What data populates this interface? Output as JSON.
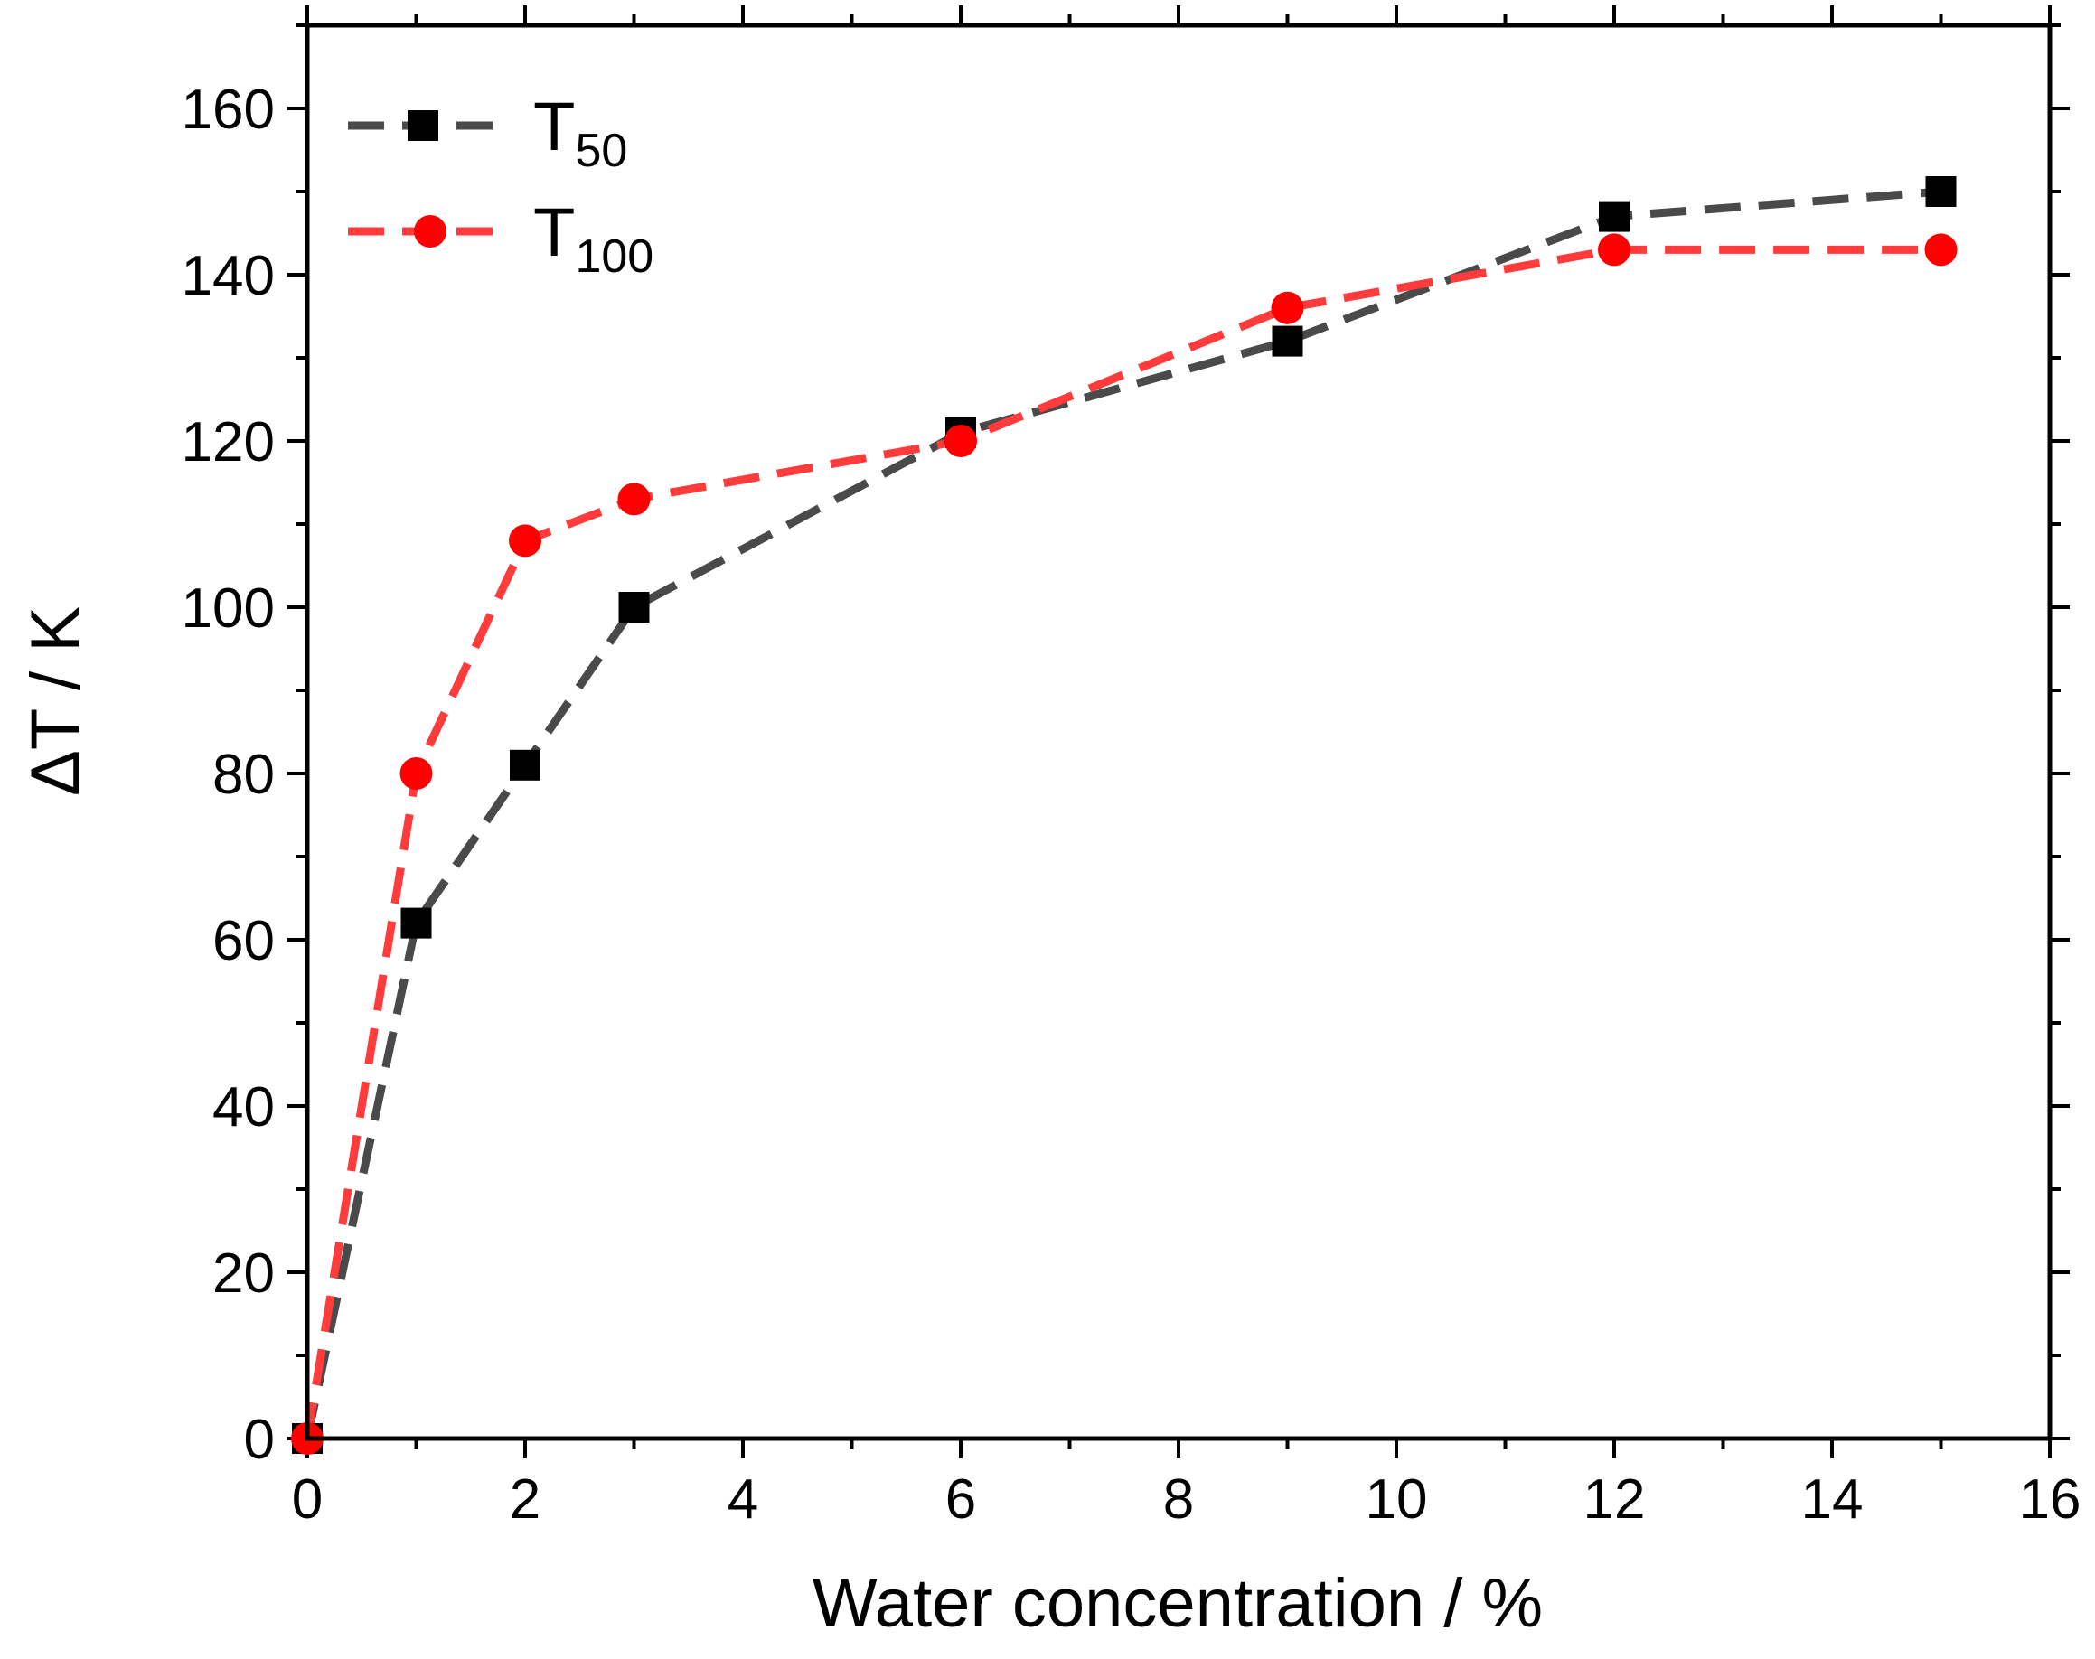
{
  "chart_data": {
    "type": "line",
    "title": "",
    "xlabel": "Water concentration / %",
    "ylabel": "ΔT / K",
    "xlim": [
      0,
      16
    ],
    "ylim": [
      0,
      170
    ],
    "xticks": [
      0,
      2,
      4,
      6,
      8,
      10,
      12,
      14,
      16
    ],
    "yticks": [
      0,
      20,
      40,
      60,
      80,
      100,
      120,
      140,
      160
    ],
    "grid": false,
    "legend_position": "top-left",
    "series": [
      {
        "name": "T50",
        "label_main": "T",
        "label_sub": "50",
        "color": "#4a4a4a",
        "marker": "square",
        "marker_color": "#000000",
        "line_style": "dashed",
        "x": [
          0,
          1,
          2,
          3,
          6,
          9,
          12,
          15
        ],
        "y": [
          0,
          62,
          81,
          100,
          121,
          132,
          147,
          150
        ]
      },
      {
        "name": "T100",
        "label_main": "T",
        "label_sub": "100",
        "color": "#ff3b3b",
        "marker": "circle",
        "marker_color": "#ff0000",
        "line_style": "dashed",
        "x": [
          0,
          1,
          2,
          3,
          6,
          9,
          12,
          15
        ],
        "y": [
          0,
          80,
          108,
          113,
          120,
          136,
          143,
          143
        ]
      }
    ]
  }
}
